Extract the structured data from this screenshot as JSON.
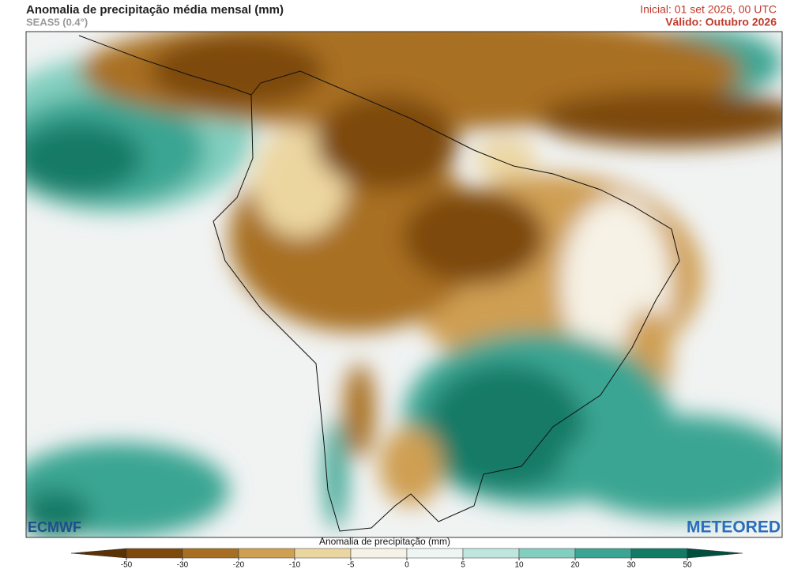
{
  "header": {
    "title": "Anomalia de precipitação média mensal (mm)",
    "subtitle": "SEAS5 (0.4°)",
    "initial": "Inicial: 01 set 2026, 00 UTC",
    "valid": "Válido: Outubro 2026"
  },
  "logos": {
    "left": "ECMWF",
    "right": "METEORED"
  },
  "colorbar": {
    "title": "Anomalia de precipitação (mm)",
    "ticks": [
      -50,
      -30,
      -20,
      -10,
      -5,
      0,
      5,
      10,
      20,
      30,
      50
    ],
    "colors": [
      "#5a3206",
      "#7d4a0c",
      "#a86f22",
      "#cf9f52",
      "#ecd6a0",
      "#f6f2e6",
      "#eef6f4",
      "#bfe6dd",
      "#82cfbf",
      "#3ba593",
      "#137a66",
      "#004f3e"
    ]
  }
}
